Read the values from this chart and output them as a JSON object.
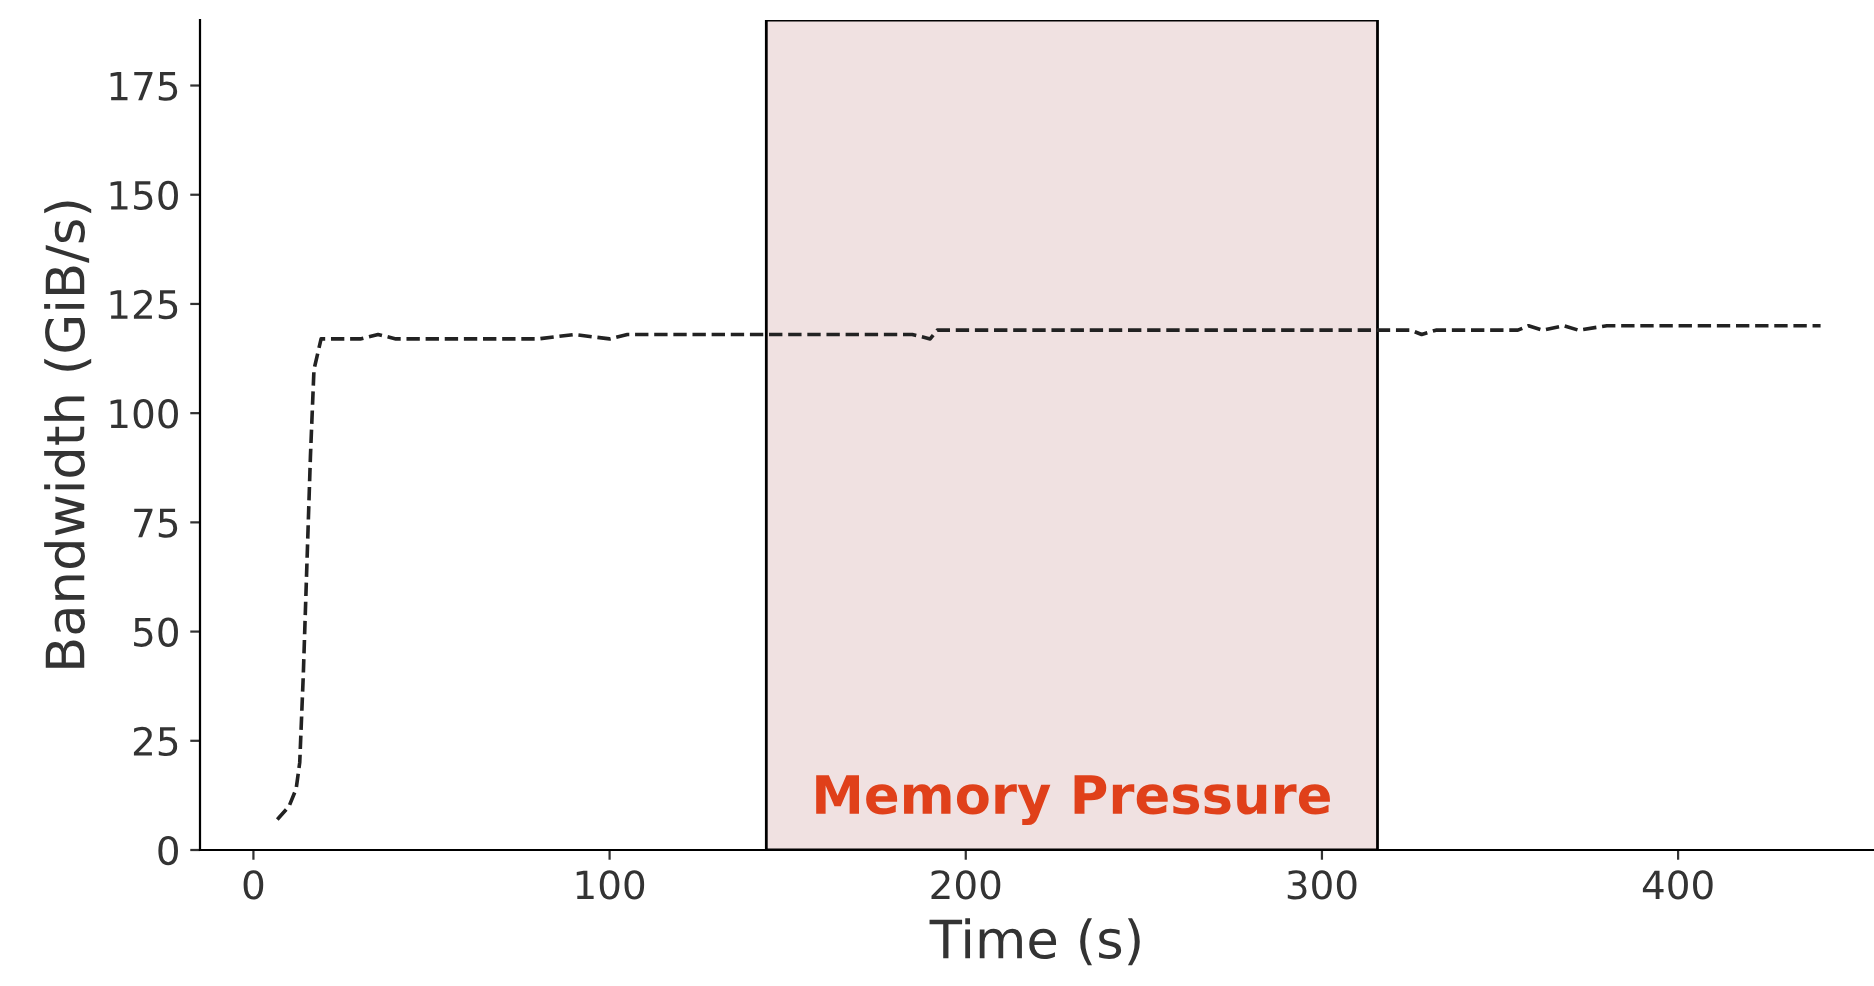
{
  "chart_data": {
    "type": "line",
    "xlabel": "Time (s)",
    "ylabel": "Bandwidth (GiB/s)",
    "xlim": [
      -15,
      455
    ],
    "ylim": [
      0,
      190
    ],
    "xticks": [
      0,
      100,
      200,
      300,
      400
    ],
    "yticks": [
      0,
      25,
      50,
      75,
      100,
      125,
      150,
      175
    ],
    "grid": false,
    "line_style": "dashed",
    "marker": "none",
    "series": [
      {
        "color": "#222222",
        "x": [
          6.7,
          10,
          12,
          13,
          14,
          15,
          16,
          17,
          19,
          30,
          35,
          40,
          80,
          90,
          100,
          105,
          120,
          140,
          185,
          190,
          192,
          250,
          325,
          328,
          332,
          355,
          358,
          362,
          368,
          372,
          380,
          440
        ],
        "values": [
          7,
          10,
          14,
          20,
          40,
          65,
          90,
          110,
          117,
          117,
          118,
          117,
          117,
          118,
          117,
          118,
          118,
          118,
          118,
          117,
          119,
          119,
          119,
          118,
          119,
          119,
          120,
          119,
          120,
          119,
          120,
          120
        ]
      }
    ],
    "bands": [
      {
        "axis": "x",
        "from": 144,
        "to": 315.6,
        "label": "Memory Pressure",
        "color": "#f0e1e1"
      }
    ]
  }
}
